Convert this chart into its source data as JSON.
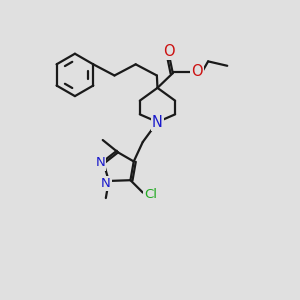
{
  "bg_color": "#e0e0e0",
  "bond_color": "#1a1a1a",
  "bond_width": 1.6,
  "N_color": "#1a1acc",
  "O_color": "#cc1111",
  "Cl_color": "#22aa22",
  "font_size_atom": 9.5,
  "fig_size": [
    3.0,
    3.0
  ],
  "dpi": 100,
  "xlim": [
    0,
    10
  ],
  "ylim": [
    0,
    10
  ]
}
